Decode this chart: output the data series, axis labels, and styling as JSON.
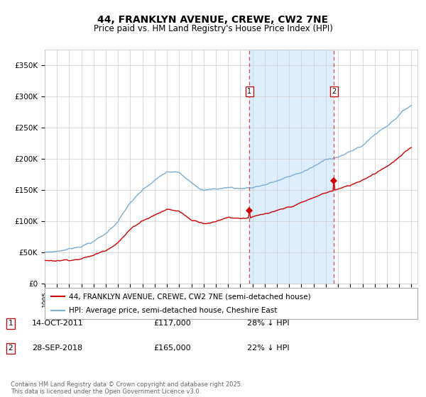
{
  "title": "44, FRANKLYN AVENUE, CREWE, CW2 7NE",
  "subtitle": "Price paid vs. HM Land Registry's House Price Index (HPI)",
  "background_color": "#ffffff",
  "plot_bg_color": "#ffffff",
  "grid_color": "#cccccc",
  "hpi_color": "#7aadd4",
  "price_color": "#cc0000",
  "shade_color": "#ddeeff",
  "dashed_color": "#dd4444",
  "annotation1_date": "14-OCT-2011",
  "annotation1_price": 117000,
  "annotation1_pct": "28% ↓ HPI",
  "annotation2_date": "28-SEP-2018",
  "annotation2_price": 165000,
  "annotation2_pct": "22% ↓ HPI",
  "ylim": [
    0,
    375000
  ],
  "yticks": [
    0,
    50000,
    100000,
    150000,
    200000,
    250000,
    300000,
    350000
  ],
  "ytick_labels": [
    "£0",
    "£50K",
    "£100K",
    "£150K",
    "£200K",
    "£250K",
    "£300K",
    "£350K"
  ],
  "footer": "Contains HM Land Registry data © Crown copyright and database right 2025.\nThis data is licensed under the Open Government Licence v3.0.",
  "legend_line1": "44, FRANKLYN AVENUE, CREWE, CW2 7NE (semi-detached house)",
  "legend_line2": "HPI: Average price, semi-detached house, Cheshire East",
  "hpi_checkpoints": [
    50000,
    52000,
    56000,
    62000,
    70000,
    82000,
    103000,
    132000,
    150000,
    165000,
    178000,
    176000,
    164000,
    153000,
    154000,
    157000,
    155000,
    158000,
    163000,
    169000,
    175000,
    182000,
    191000,
    201000,
    208000,
    215000,
    225000,
    243000,
    258000,
    277000,
    293000
  ],
  "price_checkpoints": [
    37000,
    38000,
    40000,
    43000,
    48000,
    57000,
    72000,
    92000,
    107000,
    117000,
    126000,
    123000,
    109000,
    106000,
    109000,
    117000,
    116000,
    119000,
    122000,
    125000,
    130000,
    137000,
    144000,
    152000,
    158000,
    163000,
    173000,
    185000,
    198000,
    212000,
    227000
  ]
}
